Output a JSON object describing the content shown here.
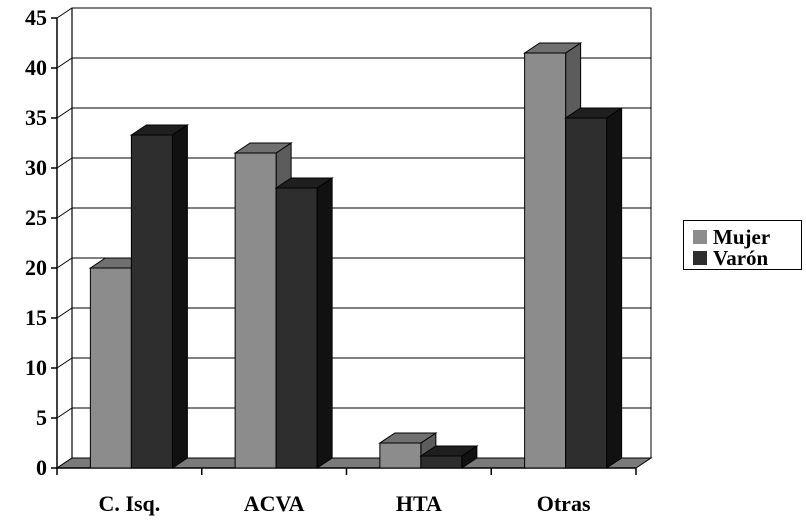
{
  "chart_data": {
    "type": "bar",
    "categories": [
      "C. Isq.",
      "ACVA",
      "HTA",
      "Otras"
    ],
    "series": [
      {
        "name": "Mujer",
        "values": [
          20,
          31.5,
          2.5,
          41.5
        ]
      },
      {
        "name": "Varón",
        "values": [
          33.3,
          28,
          1.2,
          35
        ]
      }
    ],
    "ylim": [
      0,
      45
    ],
    "yticks": [
      0,
      5,
      10,
      15,
      20,
      25,
      30,
      35,
      40,
      45
    ],
    "grid": true,
    "legend_position": "right",
    "colors": {
      "Mujer": {
        "front": "#8c8c8c",
        "side": "#5c5c5c",
        "top": "#707070"
      },
      "Varón": {
        "front": "#2e2e2e",
        "side": "#111111",
        "top": "#1f1f1f"
      },
      "floor": "#7a7a7a",
      "line": "#000000"
    }
  }
}
